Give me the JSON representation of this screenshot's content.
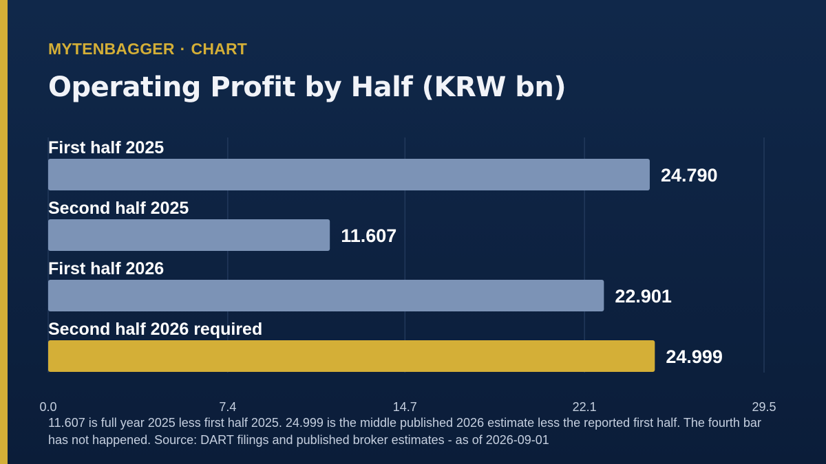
{
  "header": {
    "brand": "MYTENBAGGER",
    "separator": "·",
    "section": "CHART",
    "title": "Operating Profit by Half (KRW bn)"
  },
  "chart_data": {
    "type": "bar",
    "orientation": "horizontal",
    "categories": [
      "First half 2025",
      "Second half 2025",
      "First half 2026",
      "Second half 2026 required"
    ],
    "values": [
      24.79,
      11.607,
      22.901,
      24.999
    ],
    "value_labels": [
      "24.790",
      "11.607",
      "22.901",
      "24.999"
    ],
    "highlighted_index": 3,
    "xlim": [
      0,
      29.5
    ],
    "x_ticks": [
      0.0,
      7.4,
      14.7,
      22.1,
      29.5
    ],
    "x_tick_labels": [
      "0.0",
      "7.4",
      "14.7",
      "22.1",
      "29.5"
    ],
    "grid": true,
    "colors": {
      "bar": "#7c93b6",
      "highlight": "#d4af37",
      "grid": "#2c4468",
      "label": "#ffffff",
      "tick": "#c5cfdf"
    }
  },
  "footnote": "11.607 is full year 2025 less first half 2025. 24.999 is the middle published 2026 estimate less the reported first half. The fourth bar has not happened. Source: DART filings and published broker estimates - as of 2026-09-01",
  "theme": {
    "background": "#0f2547",
    "accent": "#d4af37"
  }
}
